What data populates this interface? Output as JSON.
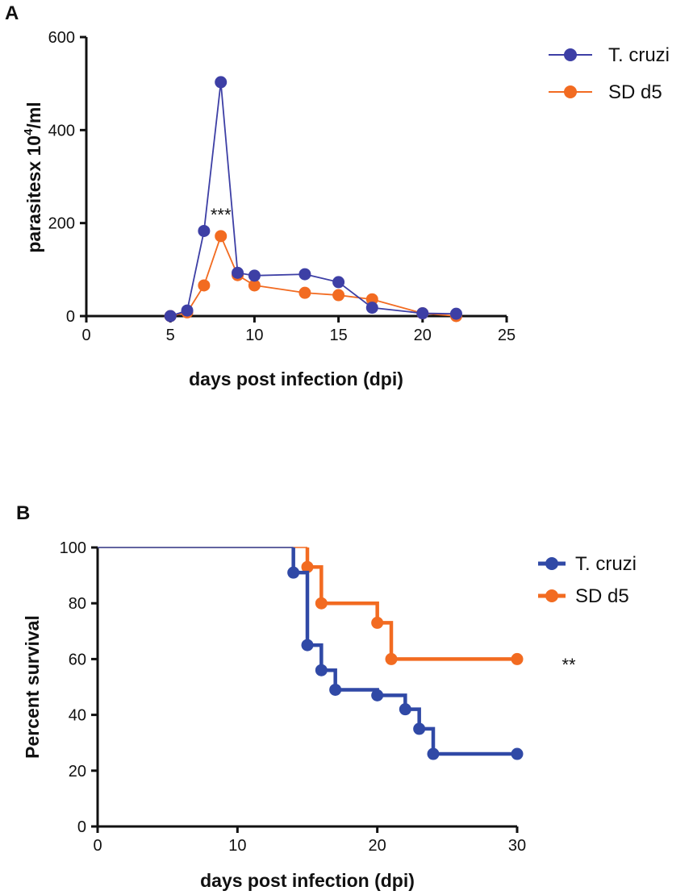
{
  "figure": {
    "panels": [
      "A",
      "B"
    ]
  },
  "chart_data": [
    {
      "panel": "A",
      "type": "line",
      "title": "",
      "xlabel": "days post infection (dpi)",
      "ylabel_main": "parasitesx 10",
      "ylabel_sup": "4",
      "ylabel_tail": "/ml",
      "xlim": [
        0,
        25
      ],
      "ylim": [
        0,
        600
      ],
      "xticks": [
        0,
        5,
        10,
        15,
        20,
        25
      ],
      "yticks": [
        0,
        200,
        400,
        600
      ],
      "grid": false,
      "legend_position": "top-right",
      "annotation": {
        "text": "***",
        "x": 8,
        "y": 205
      },
      "series": [
        {
          "name": "T. cruzi",
          "color": "#3d3fa5",
          "x": [
            5,
            6,
            7,
            8,
            9,
            10,
            13,
            15,
            17,
            20,
            22
          ],
          "values": [
            0,
            12,
            183,
            503,
            93,
            87,
            90,
            73,
            18,
            6,
            5
          ]
        },
        {
          "name": "SD d5",
          "color": "#f26b21",
          "x": [
            5,
            6,
            7,
            8,
            9,
            10,
            13,
            15,
            17,
            20,
            22
          ],
          "values": [
            0,
            8,
            66,
            172,
            88,
            66,
            50,
            45,
            36,
            6,
            0
          ]
        }
      ]
    },
    {
      "panel": "B",
      "type": "line",
      "title": "",
      "xlabel": "days post infection (dpi)",
      "ylabel": "Percent survival",
      "xlim": [
        0,
        30
      ],
      "ylim": [
        0,
        100
      ],
      "xticks": [
        0,
        10,
        20,
        30
      ],
      "yticks": [
        0,
        20,
        40,
        60,
        80,
        100
      ],
      "grid": false,
      "legend_position": "top-right",
      "annotation": {
        "text": "**"
      },
      "series": [
        {
          "name": "T. cruzi",
          "color": "#3049a6",
          "x": [
            14,
            15,
            16,
            17,
            20,
            22,
            23,
            24,
            30
          ],
          "values": [
            91,
            65,
            56,
            49,
            47,
            42,
            35,
            26,
            26
          ]
        },
        {
          "name": "SD d5",
          "color": "#f26b21",
          "x": [
            15,
            16,
            20,
            21,
            30
          ],
          "values": [
            93,
            80,
            73,
            60,
            60
          ]
        }
      ]
    }
  ]
}
